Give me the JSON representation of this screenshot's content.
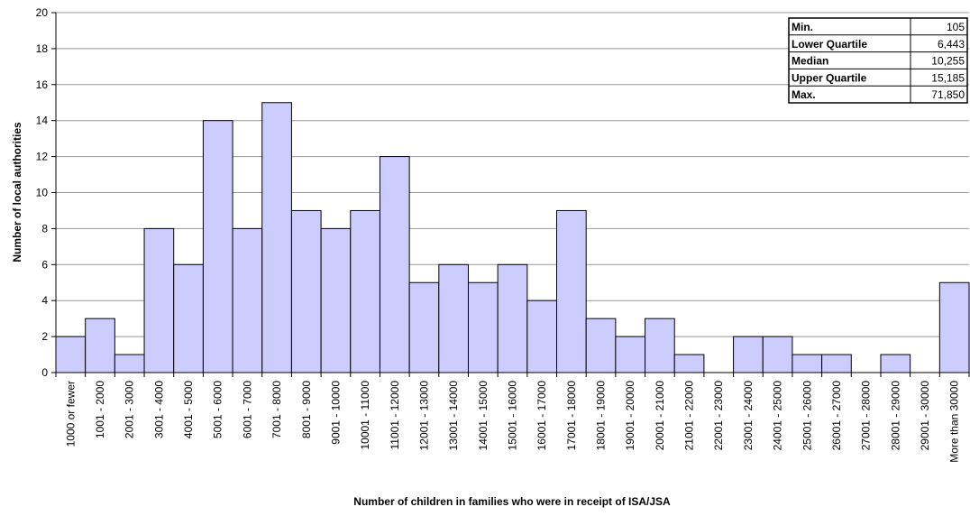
{
  "chart_data": {
    "type": "bar",
    "x_label": "Number of children in families who were in receipt of ISA/JSA",
    "y_label": "Number of local authorities",
    "categories": [
      "1000 or fewer",
      "1001 - 2000",
      "2001 - 3000",
      "3001 - 4000",
      "4001 - 5000",
      "5001 - 6000",
      "6001 - 7000",
      "7001 - 8000",
      "8001 - 9000",
      "9001 - 10000",
      "10001 - 11000",
      "11001 - 12000",
      "12001 - 13000",
      "13001 - 14000",
      "14001 - 15000",
      "15001 - 16000",
      "16001 - 17000",
      "17001 - 18000",
      "18001 - 19000",
      "19001 - 20000",
      "20001 - 21000",
      "21001 - 22000",
      "22001 - 23000",
      "23001 - 24000",
      "24001 - 25000",
      "25001 - 26000",
      "26001 - 27000",
      "27001 - 28000",
      "28001 - 29000",
      "29001 - 30000",
      "More than 30000"
    ],
    "values": [
      2,
      3,
      1,
      8,
      6,
      14,
      8,
      15,
      9,
      8,
      9,
      12,
      5,
      6,
      5,
      6,
      4,
      9,
      3,
      2,
      3,
      1,
      0,
      2,
      2,
      1,
      1,
      0,
      1,
      0,
      5
    ],
    "color": "#ccccff",
    "ylim": [
      0,
      20
    ],
    "yticks": [
      0,
      2,
      4,
      6,
      8,
      10,
      12,
      14,
      16,
      18,
      20
    ],
    "grid": true,
    "summary_table": {
      "rows": [
        [
          "Min.",
          "105"
        ],
        [
          "Lower Quartile",
          "6,443"
        ],
        [
          "Median",
          "10,255"
        ],
        [
          "Upper Quartile",
          "15,185"
        ],
        [
          "Max.",
          "71,850"
        ]
      ]
    }
  }
}
